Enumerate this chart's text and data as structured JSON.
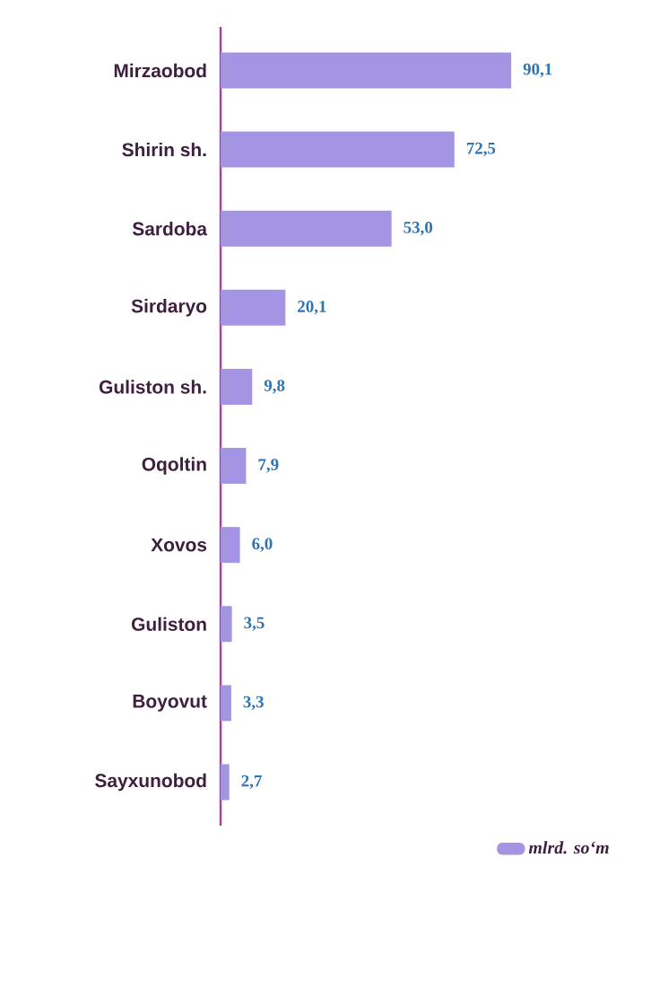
{
  "chart_data": {
    "type": "bar",
    "orientation": "horizontal",
    "categories": [
      "Mirzaobod",
      "Shirin sh.",
      "Sardoba",
      "Sirdaryo",
      "Guliston sh.",
      "Oqoltin",
      "Xovos",
      "Guliston",
      "Boyovut",
      "Sayxunobod"
    ],
    "series": [
      {
        "name": "mlrd. so‘m",
        "color": "#a593e3",
        "values": [
          90.1,
          72.5,
          53.0,
          20.1,
          9.8,
          7.9,
          6.0,
          3.5,
          3.3,
          2.7
        ],
        "value_labels": [
          "90,1",
          "72,5",
          "53,0",
          "20,1",
          "9,8",
          "7,9",
          "6,0",
          "3,5",
          "3,3",
          "2,7"
        ]
      }
    ],
    "legend": "bottom right"
  }
}
